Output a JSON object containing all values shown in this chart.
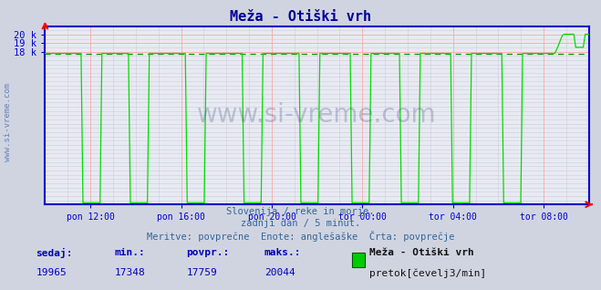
{
  "title": "Meža - Otiški vrh",
  "bg_color": "#d0d4e0",
  "plot_bg_color": "#e8eaf2",
  "line_color": "#00dd00",
  "avg_line_color": "#009900",
  "axis_color": "#0000cc",
  "tick_color": "#0000aa",
  "grid_color_major": "#ffaaaa",
  "grid_color_minor": "#ccccdd",
  "x_tick_labels": [
    "pon 12:00",
    "pon 16:00",
    "pon 20:00",
    "tor 00:00",
    "tor 04:00",
    "tor 08:00"
  ],
  "x_tick_fracs": [
    0.0833,
    0.25,
    0.4167,
    0.5833,
    0.75,
    0.9167
  ],
  "ymin": 0,
  "ymax": 21000,
  "ytick_vals": [
    18000,
    19000,
    20000
  ],
  "ytick_labels": [
    "18 k",
    "19 k",
    "20 k"
  ],
  "avg_val": 17759,
  "base_val": 17780,
  "drop_val": 0,
  "spike_val": 20044,
  "subtitle1": "Slovenija / reke in morje.",
  "subtitle2": "zadnji dan / 5 minut.",
  "subtitle3": "Meritve: povprečne  Enote: anglešaške  Črta: povprečje",
  "legend_name": "Meža - Otiški vrh",
  "legend_unit": "pretok[čevelj3/min]",
  "legend_color": "#00cc00",
  "stats_labels": [
    "sedaj:",
    "min.:",
    "povpr.:",
    "maks.:"
  ],
  "stats_values": [
    "19965",
    "17348",
    "17759",
    "20044"
  ],
  "watermark": "www.si-vreme.com",
  "watermark_left": "www.si-vreme.com"
}
